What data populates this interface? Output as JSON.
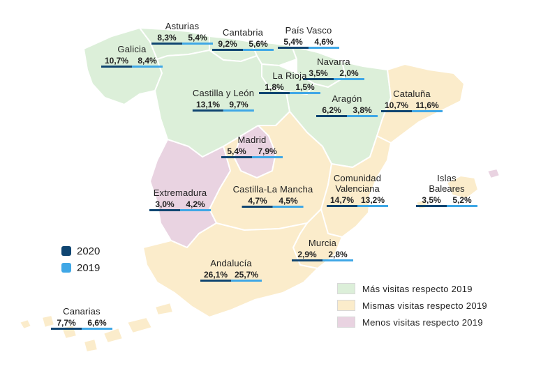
{
  "colors": {
    "more": "#dcefd9",
    "same": "#fbeccb",
    "less": "#e9d3e1",
    "border": "#ffffff",
    "bar_2020": "#0f4571",
    "bar_2019": "#3fa7e6"
  },
  "legend": {
    "years": [
      {
        "label": "2020",
        "color": "#0f4571"
      },
      {
        "label": "2019",
        "color": "#3fa7e6"
      }
    ],
    "categories": [
      {
        "label": "Más visitas respecto 2019",
        "color": "#dcefd9"
      },
      {
        "label": "Mismas visitas respecto 2019",
        "color": "#fbeccb"
      },
      {
        "label": "Menos visitas respecto 2019",
        "color": "#e9d3e1"
      }
    ]
  },
  "regions": [
    {
      "id": "asturias",
      "name": "Asturias",
      "name2": "",
      "v2020": "8,3%",
      "v2019": "5,4%"
    },
    {
      "id": "cantabria",
      "name": "Cantabria",
      "name2": "",
      "v2020": "9,2%",
      "v2019": "5,6%"
    },
    {
      "id": "pais-vasco",
      "name": "País Vasco",
      "name2": "",
      "v2020": "5,4%",
      "v2019": "4,6%"
    },
    {
      "id": "galicia",
      "name": "Galicia",
      "name2": "",
      "v2020": "10,7%",
      "v2019": "8,4%"
    },
    {
      "id": "navarra",
      "name": "Navarra",
      "name2": "",
      "v2020": "3,5%",
      "v2019": "2,0%"
    },
    {
      "id": "la-rioja",
      "name": "La Rioja",
      "name2": "",
      "v2020": "1,8%",
      "v2019": "1,5%"
    },
    {
      "id": "castilla-leon",
      "name": "Castilla  y León",
      "name2": "",
      "v2020": "13,1%",
      "v2019": "9,7%"
    },
    {
      "id": "aragon",
      "name": "Aragón",
      "name2": "",
      "v2020": "6,2%",
      "v2019": "3,8%"
    },
    {
      "id": "cataluna",
      "name": "Cataluña",
      "name2": "",
      "v2020": "10,7%",
      "v2019": "11,6%"
    },
    {
      "id": "madrid",
      "name": "Madrid",
      "name2": "",
      "v2020": "5,4%",
      "v2019": "7,9%"
    },
    {
      "id": "extremadura",
      "name": "Extremadura",
      "name2": "",
      "v2020": "3,0%",
      "v2019": "4,2%"
    },
    {
      "id": "castilla-la-mancha",
      "name": "Castilla-La Mancha",
      "name2": "",
      "v2020": "4,7%",
      "v2019": "4,5%"
    },
    {
      "id": "comunidad-valenciana",
      "name": "Comunidad",
      "name2": "Valenciana",
      "v2020": "14,7%",
      "v2019": "13,2%"
    },
    {
      "id": "islas-baleares",
      "name": "Islas",
      "name2": "Baleares",
      "v2020": "3,5%",
      "v2019": "5,2%"
    },
    {
      "id": "murcia",
      "name": "Murcia",
      "name2": "",
      "v2020": "2,9%",
      "v2019": "2,8%"
    },
    {
      "id": "andalucia",
      "name": "Andalucía",
      "name2": "",
      "v2020": "26,1%",
      "v2019": "25,7%"
    },
    {
      "id": "canarias",
      "name": "Canarias",
      "name2": "",
      "v2020": "7,7%",
      "v2019": "6,6%"
    }
  ]
}
